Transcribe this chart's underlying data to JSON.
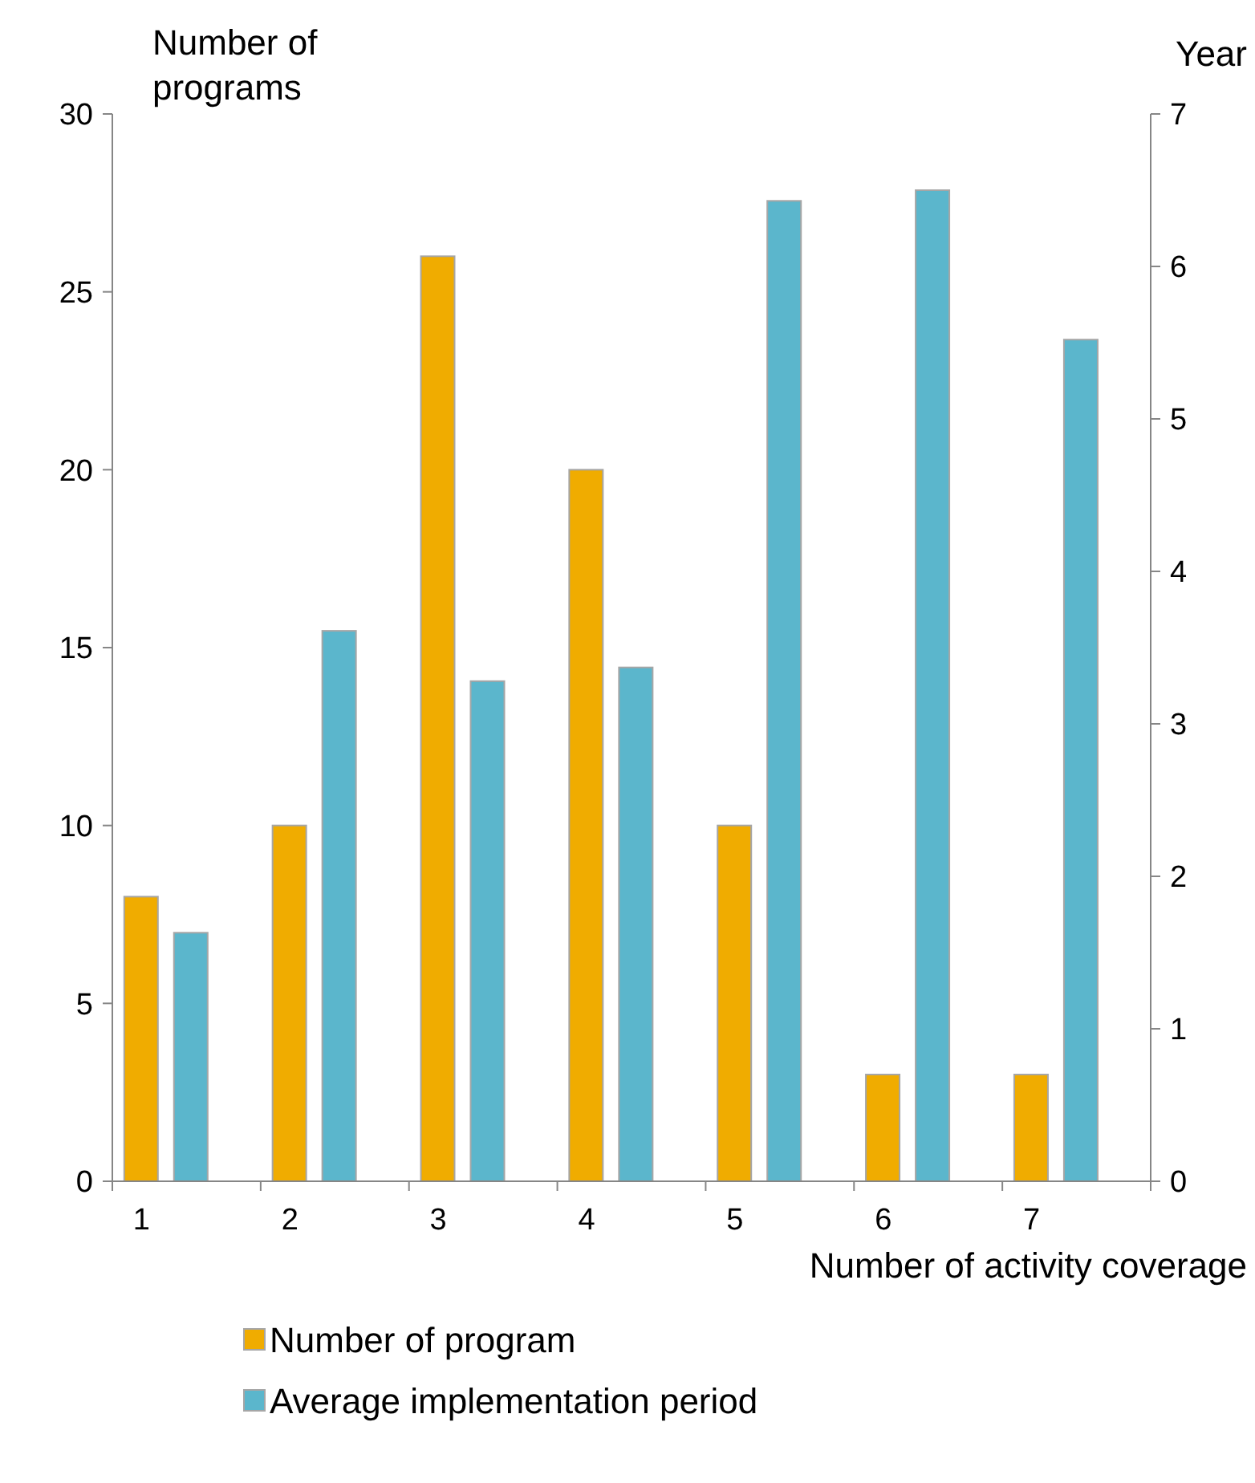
{
  "chart_data": {
    "type": "bar",
    "ylabel": "Number of programs",
    "y2label": "Year",
    "xlabel": "Number of activity coverage",
    "categories": [
      "1",
      "2",
      "3",
      "4",
      "5",
      "6",
      "7"
    ],
    "series": [
      {
        "name": "Number of program",
        "color": "#f0ac00",
        "values": [
          8,
          10,
          26,
          20,
          10,
          3,
          3
        ]
      },
      {
        "name": "Average implementation period",
        "color": "#5bb6cc",
        "axis": "y2",
        "values": [
          1.63,
          3.61,
          3.28,
          3.37,
          6.43,
          6.5,
          5.52
        ]
      }
    ],
    "ylim": [
      0,
      30
    ],
    "yticks": [
      0,
      5,
      10,
      15,
      20,
      25,
      30
    ],
    "y2lim": [
      0,
      7
    ],
    "y2ticks": [
      0,
      1,
      2,
      3,
      4,
      5,
      6,
      7
    ],
    "grid": false,
    "legend": "bottom"
  }
}
